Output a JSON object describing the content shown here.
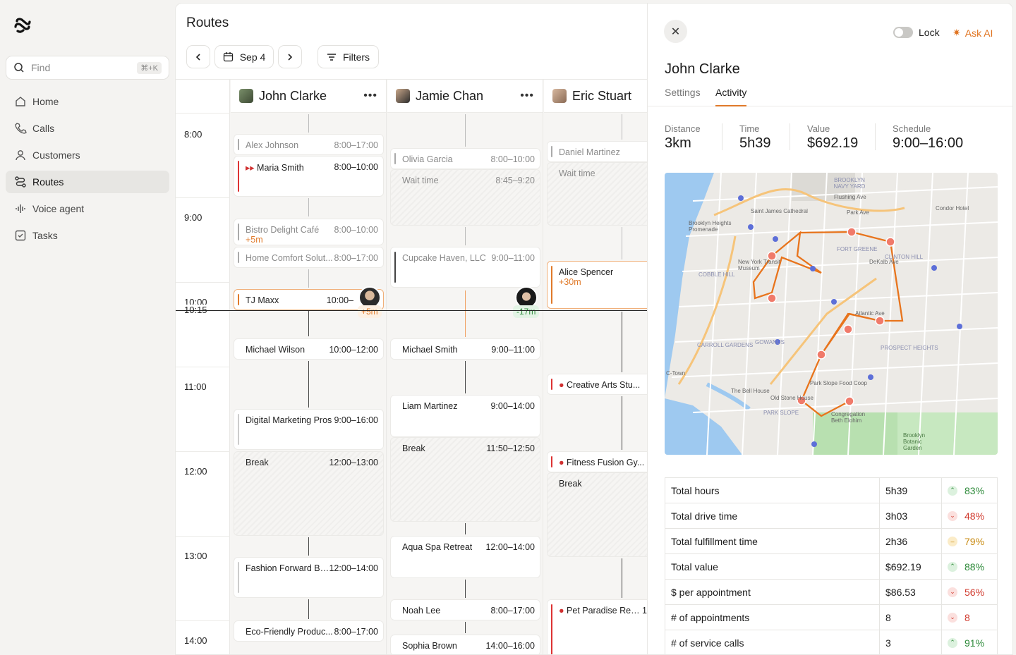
{
  "sidebar": {
    "find_placeholder": "Find",
    "find_shortcut": "⌘+K",
    "items": [
      {
        "label": "Home",
        "icon": "home-icon"
      },
      {
        "label": "Calls",
        "icon": "phone-icon"
      },
      {
        "label": "Customers",
        "icon": "user-icon"
      },
      {
        "label": "Routes",
        "icon": "route-icon",
        "active": true
      },
      {
        "label": "Voice agent",
        "icon": "waveform-icon"
      },
      {
        "label": "Tasks",
        "icon": "checkbox-icon"
      }
    ]
  },
  "header": {
    "title": "Routes",
    "date": "Sep 4",
    "filters": "Filters"
  },
  "timeline": {
    "hours": [
      "8:00",
      "9:00",
      "10:00",
      "11:00",
      "12:00",
      "13:00",
      "14:00"
    ],
    "now_label_top": "10:00",
    "now_label": "10:15"
  },
  "columns": [
    {
      "name": "John Clarke",
      "cards": [
        {
          "title": "Alex Johnson",
          "time": "8:00–17:00",
          "muted": true
        },
        {
          "title": "Maria Smith",
          "time": "8:00–10:00",
          "priority": true
        },
        {
          "title": "Bistro Delight Café",
          "time": "8:00–10:00",
          "muted": true,
          "delay": "+5m"
        },
        {
          "title": "Home Comfort Solut...",
          "time": "8:00–17:00",
          "muted": true
        },
        {
          "title": "TJ Maxx",
          "time": "10:00–",
          "delay": "+5m"
        },
        {
          "title": "Michael Wilson",
          "time": "10:00–12:00"
        },
        {
          "title": "Digital Marketing Pros",
          "time": "9:00–16:00"
        },
        {
          "title": "Break",
          "time": "12:00–13:00"
        },
        {
          "title": "Fashion Forward Bo...",
          "time": "12:00–14:00"
        },
        {
          "title": "Eco-Friendly Produc...",
          "time": "8:00–17:00"
        }
      ]
    },
    {
      "name": "Jamie Chan",
      "cards": [
        {
          "title": "Olivia Garcia",
          "time": "8:00–10:00",
          "muted": true
        },
        {
          "title": "Wait time",
          "time": "8:45–9:20"
        },
        {
          "title": "Cupcake Haven, LLC",
          "time": "9:00–11:00",
          "muted": true
        },
        {
          "title": "Michael Smith",
          "time": "9:00–11:00",
          "delay": "-17m"
        },
        {
          "title": "Liam Martinez",
          "time": "9:00–14:00"
        },
        {
          "title": "Break",
          "time": "11:50–12:50"
        },
        {
          "title": "Aqua Spa Retreat",
          "time": "12:00–14:00"
        },
        {
          "title": "Noah Lee",
          "time": "8:00–17:00"
        },
        {
          "title": "Sophia Brown",
          "time": "14:00–16:00"
        }
      ]
    },
    {
      "name": "Eric Stuart",
      "cards": [
        {
          "title": "Daniel Martinez",
          "muted": true
        },
        {
          "title": "Wait time"
        },
        {
          "title": "Alice Spencer",
          "delay": "+30m"
        },
        {
          "title": "Creative Arts Stu..."
        },
        {
          "title": "Fitness Fusion Gy..."
        },
        {
          "title": "Break"
        },
        {
          "title": "Pet Paradise Res...",
          "time": "1"
        }
      ]
    }
  ],
  "panel": {
    "lock": "Lock",
    "ask_ai": "Ask AI",
    "title": "John Clarke",
    "tabs": [
      "Settings",
      "Activity"
    ],
    "stats": [
      {
        "label": "Distance",
        "value": "3km"
      },
      {
        "label": "Time",
        "value": "5h39"
      },
      {
        "label": "Value",
        "value": "$692.19"
      },
      {
        "label": "Schedule",
        "value": "9:00–16:00"
      }
    ],
    "map_labels": [
      "BROOKLYN NAVY YARD",
      "Flushing Ave",
      "Saint James Cathedral",
      "Park Ave",
      "Condor Hotel",
      "Brooklyn Heights Promenade",
      "FORT GREENE",
      "CLINTON HILL",
      "New York Transit Museum",
      "DeKalb Ave",
      "COBBLE HILL",
      "Atlantic Ave",
      "PROSPECT HEIGHTS",
      "GOWANUS",
      "CARROLL GARDENS",
      "Park Slope Food Coop",
      "The Bell House",
      "PARK SLOPE",
      "Old Stone House",
      "Congregation Beth Elohim",
      "Brooklyn Botanic Garden",
      "C-Town"
    ],
    "metrics": [
      {
        "name": "Total hours",
        "value": "5h39",
        "pct": "83%",
        "trend": "up"
      },
      {
        "name": "Total drive time",
        "value": "3h03",
        "pct": "48%",
        "trend": "down"
      },
      {
        "name": "Total fulfillment time",
        "value": "2h36",
        "pct": "79%",
        "trend": "mid"
      },
      {
        "name": "Total value",
        "value": "$692.19",
        "pct": "88%",
        "trend": "up"
      },
      {
        "name": "$ per appointment",
        "value": "$86.53",
        "pct": "56%",
        "trend": "down"
      },
      {
        "name": "# of appointments",
        "value": "8",
        "pct": "8",
        "trend": "down"
      },
      {
        "name": "# of service calls",
        "value": "3",
        "pct": "91%",
        "trend": "up"
      }
    ]
  }
}
